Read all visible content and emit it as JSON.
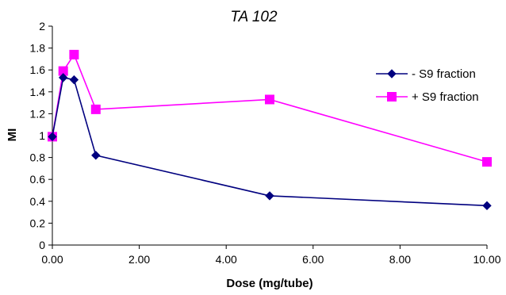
{
  "chart_data": {
    "type": "line",
    "title": "TA 102",
    "xlabel": "Dose (mg/tube)",
    "ylabel": "MI",
    "xlim": [
      0,
      10
    ],
    "ylim": [
      0,
      2
    ],
    "x_ticks": [
      "0.00",
      "2.00",
      "4.00",
      "6.00",
      "8.00",
      "10.00"
    ],
    "y_ticks": [
      "0",
      "0.2",
      "0.4",
      "0.6",
      "0.8",
      "1",
      "1.2",
      "1.4",
      "1.6",
      "1.8",
      "2"
    ],
    "grid": false,
    "legend_position": "top-right",
    "series": [
      {
        "name": "- S9 fraction",
        "color": "#00007f",
        "marker": "diamond",
        "x": [
          0,
          0.25,
          0.5,
          1,
          5,
          10
        ],
        "y": [
          0.99,
          1.53,
          1.51,
          0.82,
          0.45,
          0.36
        ]
      },
      {
        "name": "+ S9 fraction",
        "color": "#ff00ff",
        "marker": "square",
        "x": [
          0,
          0.25,
          0.5,
          1,
          5,
          10
        ],
        "y": [
          0.99,
          1.59,
          1.74,
          1.24,
          1.33,
          0.76
        ]
      }
    ]
  }
}
